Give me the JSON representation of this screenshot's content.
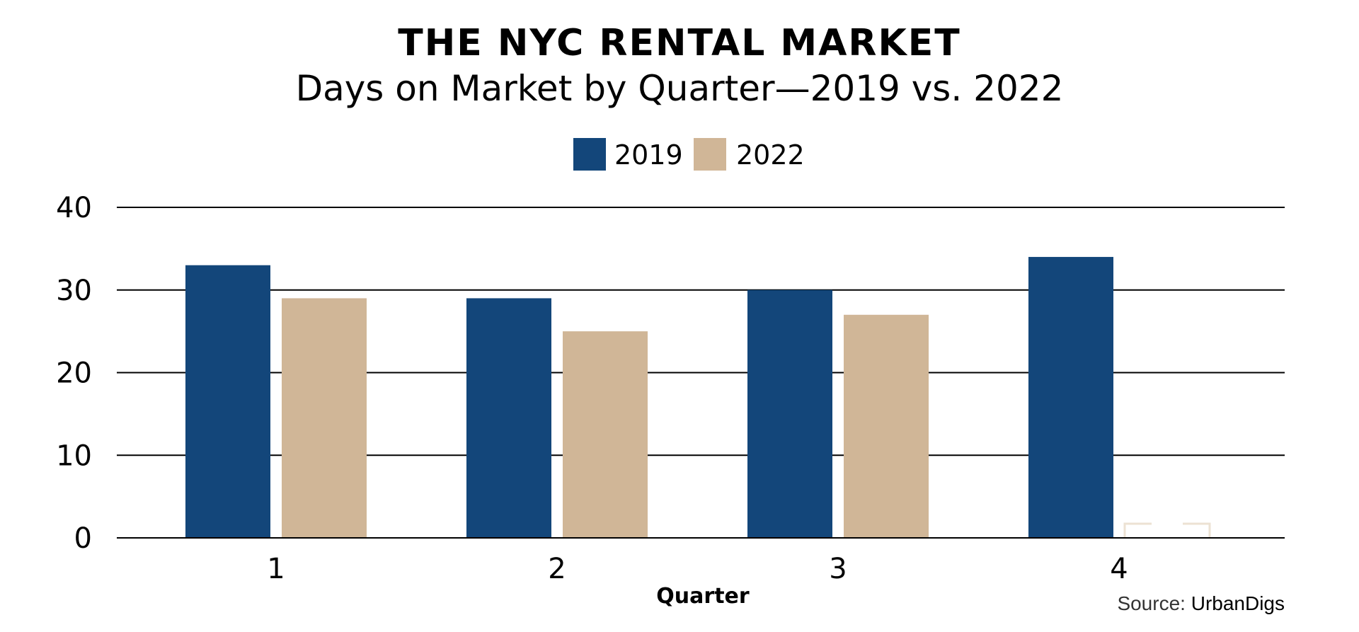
{
  "title": "THE NYC RENTAL MARKET",
  "subtitle": "Days on Market by Quarter—2019 vs. 2022",
  "source": {
    "prefix": "Source: ",
    "name": "UrbanDigs"
  },
  "colors": {
    "series_2019": "#13467a",
    "series_2022": "#d0b697",
    "grid": "#000000",
    "placeholder_outline": "#ece2d3"
  },
  "chart_data": {
    "type": "bar",
    "title": "THE NYC RENTAL MARKET",
    "subtitle": "Days on Market by Quarter—2019 vs. 2022",
    "xlabel": "Quarter",
    "ylabel": "",
    "categories": [
      "1",
      "2",
      "3",
      "4"
    ],
    "series": [
      {
        "name": "2019",
        "color": "#13467a",
        "values": [
          33,
          29,
          30,
          34
        ]
      },
      {
        "name": "2022",
        "color": "#d0b697",
        "values": [
          29,
          25,
          27,
          null
        ]
      }
    ],
    "ylim": [
      0,
      40
    ],
    "yticks": [
      0,
      10,
      20,
      30,
      40
    ],
    "grid": true,
    "legend_position": "top-center"
  }
}
